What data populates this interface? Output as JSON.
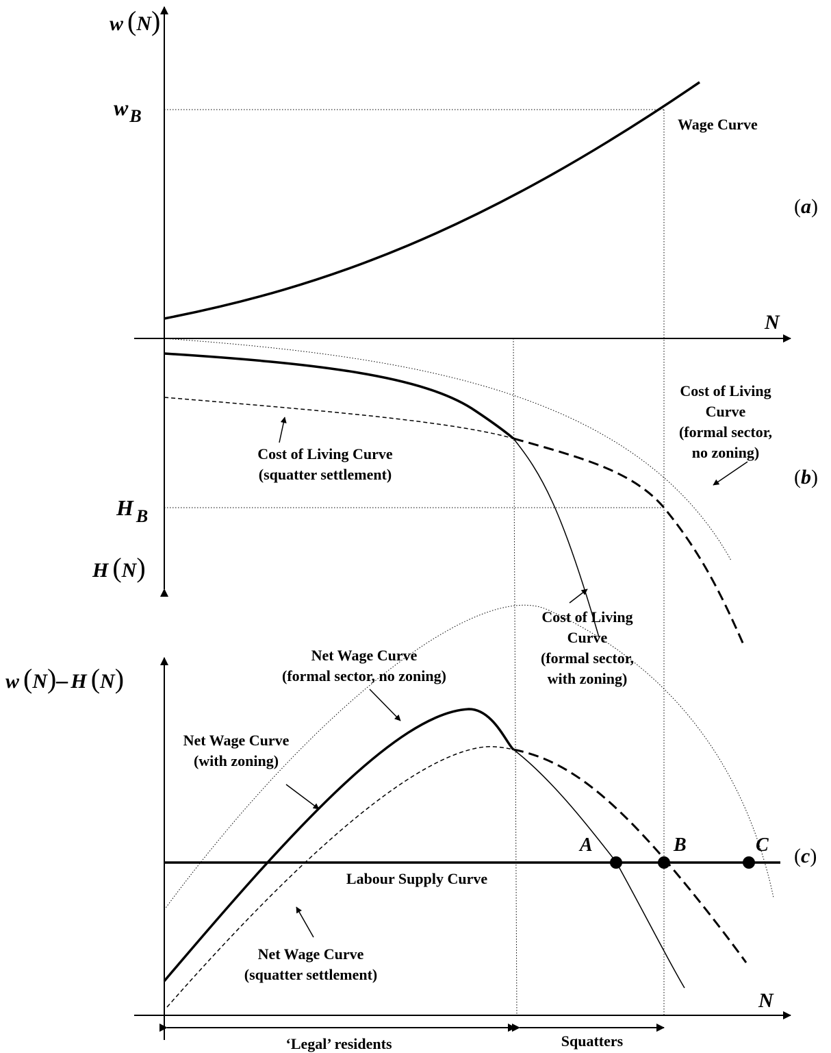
{
  "panels": {
    "a": {
      "tag": "a",
      "y_axis_label": "w",
      "y_axis_arg": "N",
      "x_axis_label": "N",
      "tick_label": "w",
      "tick_label_sub": "B",
      "curve_label": "Wage Curve"
    },
    "b": {
      "tag": "b",
      "y_axis_label": "H",
      "y_axis_arg": "N",
      "tick_label": "H",
      "tick_label_sub": "B",
      "squatter_label_1": "Cost of Living Curve",
      "squatter_label_2": "(squatter settlement)",
      "formal_nozoning_label_1": "Cost of Living",
      "formal_nozoning_label_2": "Curve",
      "formal_nozoning_label_3": "(formal sector,",
      "formal_nozoning_label_4": "no zoning)",
      "formal_zoning_label_1": "Cost of Living",
      "formal_zoning_label_2": "Curve",
      "formal_zoning_label_3": "(formal sector,",
      "formal_zoning_label_4": "with zoning)"
    },
    "c": {
      "tag": "c",
      "y_axis_w": "w",
      "y_axis_arg1": "N",
      "y_axis_minus": "–",
      "y_axis_h": "H",
      "y_axis_arg2": "N",
      "x_axis_label": "N",
      "nozoning_label_1": "Net Wage Curve",
      "nozoning_label_2": "(formal sector, no zoning)",
      "zoning_label_1": "Net Wage Curve",
      "zoning_label_2": "(with zoning)",
      "squatter_label_1": "Net Wage Curve",
      "squatter_label_2": "(squatter settlement)",
      "supply_label": "Labour Supply Curve",
      "point_a": "A",
      "point_b": "B",
      "point_c": "C"
    }
  },
  "ranges": {
    "legal": "‘Legal’ residents",
    "squatters": "Squatters"
  }
}
